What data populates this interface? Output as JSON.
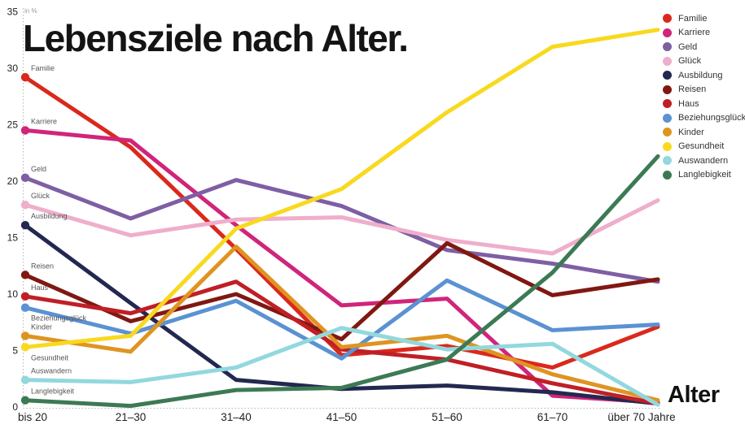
{
  "title": "Lebensziele nach Alter.",
  "unit_label": "in %",
  "x_axis_title": "Alter",
  "chart_data": {
    "type": "line",
    "categories": [
      "bis 20",
      "21–30",
      "31–40",
      "41–50",
      "51–60",
      "61–70",
      "über 70 Jahre"
    ],
    "xlabel": "Alter",
    "ylabel": "in %",
    "ylim": [
      0,
      35
    ],
    "yticks": [
      0,
      5,
      10,
      15,
      20,
      25,
      30,
      35
    ],
    "grid": "dotted axis lines only",
    "legend_position": "top-right",
    "series": [
      {
        "name": "Familie",
        "color": "#da291c",
        "label_side": "above",
        "values": [
          29.2,
          23.0,
          14.0,
          4.6,
          5.4,
          3.5,
          7.1
        ]
      },
      {
        "name": "Karriere",
        "color": "#d0257a",
        "label_side": "above",
        "values": [
          24.5,
          23.6,
          16.1,
          9.0,
          9.6,
          1.0,
          0.4
        ]
      },
      {
        "name": "Geld",
        "color": "#7e5fa4",
        "label_side": "above",
        "values": [
          20.3,
          16.7,
          20.1,
          17.8,
          13.9,
          12.7,
          11.1
        ]
      },
      {
        "name": "Glück",
        "color": "#efaecb",
        "label_side": "above",
        "values": [
          17.9,
          15.2,
          16.6,
          16.8,
          14.8,
          13.6,
          18.3
        ]
      },
      {
        "name": "Ausbildung",
        "color": "#232850",
        "label_side": "above",
        "values": [
          16.1,
          9.2,
          2.4,
          1.6,
          1.9,
          1.3,
          0.3
        ]
      },
      {
        "name": "Reisen",
        "color": "#801812",
        "label_side": "above",
        "values": [
          11.7,
          7.6,
          10.0,
          6.0,
          14.5,
          9.9,
          11.3
        ]
      },
      {
        "name": "Haus",
        "color": "#c01f26",
        "label_side": "above",
        "values": [
          9.8,
          8.3,
          11.1,
          5.1,
          4.2,
          2.1,
          0.3
        ]
      },
      {
        "name": "Beziehungsglück",
        "color": "#5a92d2",
        "label_side": "below",
        "values": [
          8.8,
          6.5,
          9.4,
          4.3,
          11.2,
          6.8,
          7.3
        ]
      },
      {
        "name": "Kinder",
        "color": "#df9422",
        "label_side": "above",
        "values": [
          6.3,
          4.9,
          14.2,
          5.3,
          6.3,
          2.9,
          0.6
        ]
      },
      {
        "name": "Gesundheit",
        "color": "#f9d91f",
        "label_side": "below",
        "values": [
          5.3,
          6.3,
          15.8,
          19.3,
          26.1,
          31.9,
          33.4
        ]
      },
      {
        "name": "Auswandern",
        "color": "#92d8de",
        "label_side": "above",
        "values": [
          2.4,
          2.2,
          3.5,
          7.0,
          5.1,
          5.6,
          0.2
        ]
      },
      {
        "name": "Langlebigkeit",
        "color": "#3c7a54",
        "label_side": "above",
        "values": [
          0.6,
          0.1,
          1.5,
          1.7,
          4.2,
          11.9,
          22.2
        ]
      }
    ]
  }
}
